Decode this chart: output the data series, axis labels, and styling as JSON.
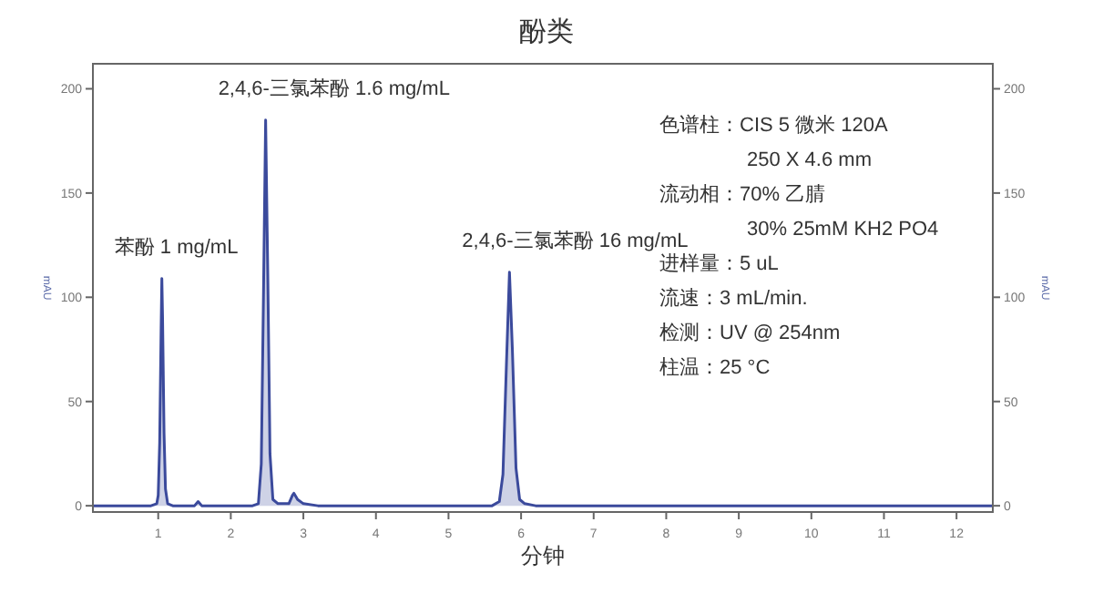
{
  "chart_data": {
    "type": "area",
    "title": "酚类",
    "xlabel": "分钟",
    "ylabel": "mAU",
    "y2label": "mAU",
    "xlim": [
      0.1,
      12.5
    ],
    "xticks": [
      1,
      2,
      3,
      4,
      5,
      6,
      7,
      8,
      9,
      10,
      11,
      12
    ],
    "ylim": [
      -3,
      212
    ],
    "yticks": [
      0,
      50,
      100,
      150,
      200
    ],
    "y2lim": [
      -3,
      212
    ],
    "y2ticks": [
      0,
      50,
      100,
      150,
      200
    ],
    "grid": false,
    "series": [
      {
        "color": "#3b4a9c",
        "x": [
          0.1,
          0.9,
          0.98,
          1.0,
          1.02,
          1.04,
          1.05,
          1.06,
          1.08,
          1.1,
          1.13,
          1.2,
          1.5,
          1.55,
          1.6,
          2.3,
          2.38,
          2.42,
          2.45,
          2.48,
          2.51,
          2.54,
          2.58,
          2.65,
          2.8,
          2.85,
          2.87,
          2.92,
          3.0,
          3.2,
          5.6,
          5.7,
          5.75,
          5.8,
          5.84,
          5.88,
          5.93,
          5.98,
          6.05,
          6.2,
          12.5
        ],
        "values": [
          0,
          0,
          1,
          5,
          30,
          85,
          109,
          90,
          35,
          8,
          1,
          0,
          0,
          2,
          0,
          0,
          1,
          20,
          100,
          185,
          110,
          25,
          3,
          1,
          1,
          5,
          6,
          3,
          1,
          0,
          0,
          2,
          15,
          70,
          112,
          75,
          18,
          3,
          1,
          0,
          0
        ]
      }
    ],
    "annotations": [
      {
        "text": "苯酚 1 mg/mL",
        "x": 1.05,
        "y": 109
      },
      {
        "text": "2,4,6-三氯苯酚 1.6 mg/mL",
        "x": 2.48,
        "y": 185
      },
      {
        "text": "2,4,6-三氯苯酚 16 mg/mL",
        "x": 5.84,
        "y": 112
      },
      "色谱柱：CIS 5 微米 120A",
      "250 X 4.6 mm",
      "流动相：70% 乙腈",
      "30% 25mM KH2 PO4",
      "进样量：5 uL",
      "流速：3 mL/min.",
      "检测：UV @ 254nm",
      "柱温：25 °C"
    ]
  }
}
